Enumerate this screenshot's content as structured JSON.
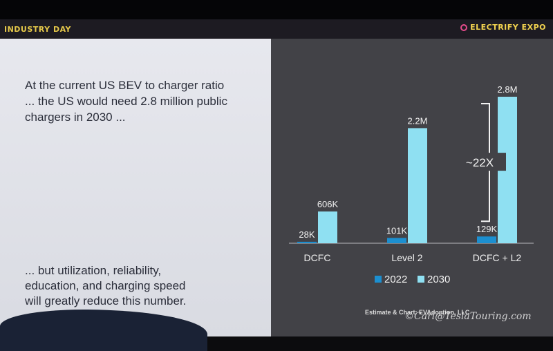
{
  "header": {
    "left_brand": "INDUSTRY DAY",
    "right_brand": "ELECTRIFY EXPO"
  },
  "slide": {
    "headline": "At the current US BEV to charger ratio\n... the US would need 2.8 million public\nchargers in 2030 ...",
    "footnote": "... but utilization, reliability,\neducation, and charging speed\nwill greatly reduce this number.",
    "credit": "Estimate & Chart: EVAdoption, LLC",
    "watermark": "©Carl@TeslaTouring.com"
  },
  "colors": {
    "series_2022": "#1c8fd0",
    "series_2030": "#8fe0f2",
    "chart_background": "#424247",
    "text_light": "#f2f2f2"
  },
  "chart_data": {
    "type": "bar",
    "title": "",
    "xlabel": "",
    "ylabel": "",
    "categories": [
      "DCFC",
      "Level 2",
      "DCFC + L2"
    ],
    "series": [
      {
        "name": "2022",
        "values": [
          28000,
          101000,
          129000
        ],
        "labels": [
          "28K",
          "101K",
          "129K"
        ]
      },
      {
        "name": "2030",
        "values": [
          606000,
          2200000,
          2800000
        ],
        "labels": [
          "606K",
          "2.2M",
          "2.8M"
        ]
      }
    ],
    "annotation": "~22X",
    "ylim": [
      0,
      2800000
    ],
    "grid": false,
    "legend_position": "bottom"
  }
}
